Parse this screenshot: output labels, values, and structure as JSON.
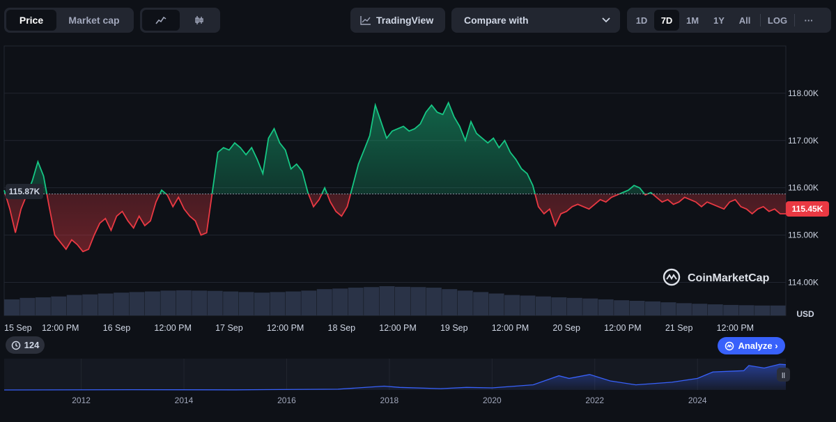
{
  "toolbar": {
    "tabs": [
      "Price",
      "Market cap"
    ],
    "chart_type_options": [
      "line-chart-icon",
      "candlestick-icon"
    ],
    "tradingview_label": "TradingView",
    "compare_label": "Compare with",
    "ranges": [
      "1D",
      "7D",
      "1M",
      "1Y",
      "All"
    ],
    "active_range": "7D",
    "log_label": "LOG",
    "more_label": "···"
  },
  "chart_data": {
    "type": "area",
    "currency_label": "USD",
    "baseline": 115.87,
    "baseline_label": "115.87K",
    "current_label": "115.45K",
    "y_ticks": [
      114,
      115,
      116,
      117,
      118
    ],
    "y_tick_labels": [
      "114.00K",
      "115.00K",
      "116.00K",
      "117.00K",
      "118.00K"
    ],
    "ylim": [
      113.3,
      119.0
    ],
    "x_tick_labels": [
      "15 Sep",
      "12:00 PM",
      "16 Sep",
      "12:00 PM",
      "17 Sep",
      "12:00 PM",
      "18 Sep",
      "12:00 PM",
      "19 Sep",
      "12:00 PM",
      "20 Sep",
      "12:00 PM",
      "21 Sep",
      "12:00 PM"
    ],
    "x_range_days": [
      0,
      6.95
    ],
    "series": [
      {
        "unit": "K USD",
        "points": [
          [
            0.0,
            115.95
          ],
          [
            0.05,
            115.55
          ],
          [
            0.1,
            115.05
          ],
          [
            0.15,
            115.55
          ],
          [
            0.2,
            115.85
          ],
          [
            0.25,
            116.15
          ],
          [
            0.3,
            116.55
          ],
          [
            0.35,
            116.25
          ],
          [
            0.4,
            115.6
          ],
          [
            0.45,
            115.0
          ],
          [
            0.5,
            114.85
          ],
          [
            0.55,
            114.7
          ],
          [
            0.6,
            114.9
          ],
          [
            0.65,
            114.8
          ],
          [
            0.7,
            114.65
          ],
          [
            0.75,
            114.7
          ],
          [
            0.8,
            115.0
          ],
          [
            0.85,
            115.25
          ],
          [
            0.9,
            115.35
          ],
          [
            0.95,
            115.1
          ],
          [
            1.0,
            115.4
          ],
          [
            1.05,
            115.5
          ],
          [
            1.1,
            115.3
          ],
          [
            1.15,
            115.15
          ],
          [
            1.2,
            115.4
          ],
          [
            1.25,
            115.2
          ],
          [
            1.3,
            115.3
          ],
          [
            1.35,
            115.7
          ],
          [
            1.4,
            115.95
          ],
          [
            1.45,
            115.85
          ],
          [
            1.5,
            115.6
          ],
          [
            1.55,
            115.8
          ],
          [
            1.6,
            115.55
          ],
          [
            1.65,
            115.4
          ],
          [
            1.7,
            115.3
          ],
          [
            1.75,
            115.0
          ],
          [
            1.8,
            115.05
          ],
          [
            1.85,
            115.9
          ],
          [
            1.9,
            116.75
          ],
          [
            1.95,
            116.85
          ],
          [
            2.0,
            116.8
          ],
          [
            2.05,
            116.95
          ],
          [
            2.1,
            116.85
          ],
          [
            2.15,
            116.7
          ],
          [
            2.2,
            116.85
          ],
          [
            2.25,
            116.6
          ],
          [
            2.3,
            116.3
          ],
          [
            2.35,
            117.05
          ],
          [
            2.4,
            117.25
          ],
          [
            2.45,
            116.95
          ],
          [
            2.5,
            116.8
          ],
          [
            2.55,
            116.4
          ],
          [
            2.6,
            116.5
          ],
          [
            2.65,
            116.35
          ],
          [
            2.7,
            115.9
          ],
          [
            2.75,
            115.6
          ],
          [
            2.8,
            115.75
          ],
          [
            2.85,
            116.0
          ],
          [
            2.9,
            115.7
          ],
          [
            2.95,
            115.5
          ],
          [
            3.0,
            115.4
          ],
          [
            3.05,
            115.6
          ],
          [
            3.1,
            116.05
          ],
          [
            3.15,
            116.5
          ],
          [
            3.2,
            116.8
          ],
          [
            3.25,
            117.1
          ],
          [
            3.3,
            117.75
          ],
          [
            3.35,
            117.4
          ],
          [
            3.4,
            117.05
          ],
          [
            3.45,
            117.2
          ],
          [
            3.5,
            117.25
          ],
          [
            3.55,
            117.3
          ],
          [
            3.6,
            117.2
          ],
          [
            3.65,
            117.25
          ],
          [
            3.7,
            117.35
          ],
          [
            3.75,
            117.6
          ],
          [
            3.8,
            117.75
          ],
          [
            3.85,
            117.6
          ],
          [
            3.9,
            117.55
          ],
          [
            3.95,
            117.8
          ],
          [
            4.0,
            117.5
          ],
          [
            4.05,
            117.3
          ],
          [
            4.1,
            117.0
          ],
          [
            4.15,
            117.4
          ],
          [
            4.2,
            117.15
          ],
          [
            4.25,
            117.05
          ],
          [
            4.3,
            116.95
          ],
          [
            4.35,
            117.05
          ],
          [
            4.4,
            116.85
          ],
          [
            4.45,
            117.0
          ],
          [
            4.5,
            116.75
          ],
          [
            4.55,
            116.6
          ],
          [
            4.6,
            116.4
          ],
          [
            4.65,
            116.3
          ],
          [
            4.7,
            116.05
          ],
          [
            4.75,
            115.6
          ],
          [
            4.8,
            115.45
          ],
          [
            4.85,
            115.55
          ],
          [
            4.9,
            115.2
          ],
          [
            4.95,
            115.45
          ],
          [
            5.0,
            115.5
          ],
          [
            5.05,
            115.6
          ],
          [
            5.1,
            115.65
          ],
          [
            5.15,
            115.6
          ],
          [
            5.2,
            115.55
          ],
          [
            5.25,
            115.65
          ],
          [
            5.3,
            115.75
          ],
          [
            5.35,
            115.7
          ],
          [
            5.4,
            115.8
          ],
          [
            5.45,
            115.85
          ],
          [
            5.5,
            115.9
          ],
          [
            5.55,
            115.95
          ],
          [
            5.6,
            116.05
          ],
          [
            5.65,
            116.0
          ],
          [
            5.7,
            115.85
          ],
          [
            5.75,
            115.9
          ],
          [
            5.8,
            115.8
          ],
          [
            5.85,
            115.7
          ],
          [
            5.9,
            115.75
          ],
          [
            5.95,
            115.65
          ],
          [
            6.0,
            115.7
          ],
          [
            6.05,
            115.8
          ],
          [
            6.1,
            115.75
          ],
          [
            6.15,
            115.7
          ],
          [
            6.2,
            115.6
          ],
          [
            6.25,
            115.7
          ],
          [
            6.3,
            115.65
          ],
          [
            6.35,
            115.6
          ],
          [
            6.4,
            115.55
          ],
          [
            6.45,
            115.7
          ],
          [
            6.5,
            115.75
          ],
          [
            6.55,
            115.6
          ],
          [
            6.6,
            115.55
          ],
          [
            6.65,
            115.45
          ],
          [
            6.7,
            115.55
          ],
          [
            6.75,
            115.6
          ],
          [
            6.8,
            115.5
          ],
          [
            6.85,
            115.55
          ],
          [
            6.9,
            115.45
          ],
          [
            6.95,
            115.45
          ]
        ]
      }
    ],
    "volume": [
      0.55,
      0.6,
      0.62,
      0.65,
      0.7,
      0.72,
      0.75,
      0.78,
      0.8,
      0.82,
      0.85,
      0.86,
      0.85,
      0.84,
      0.82,
      0.8,
      0.78,
      0.8,
      0.82,
      0.85,
      0.9,
      0.92,
      0.95,
      0.97,
      1.0,
      0.98,
      0.97,
      0.95,
      0.9,
      0.85,
      0.8,
      0.75,
      0.7,
      0.68,
      0.65,
      0.62,
      0.6,
      0.58,
      0.55,
      0.52,
      0.5,
      0.48,
      0.45,
      0.42,
      0.4,
      0.38,
      0.36,
      0.35,
      0.34,
      0.34
    ],
    "overview": {
      "type": "area",
      "x_tick_labels": [
        "2012",
        "2014",
        "2016",
        "2018",
        "2020",
        "2022",
        "2024"
      ],
      "x_ticks": [
        2012,
        2014,
        2016,
        2018,
        2020,
        2022,
        2024
      ],
      "xlim": [
        2010.5,
        2025.72
      ],
      "points": [
        [
          2010.5,
          0.0
        ],
        [
          2013.0,
          0.01
        ],
        [
          2015.0,
          0.005
        ],
        [
          2017.0,
          0.03
        ],
        [
          2017.9,
          0.15
        ],
        [
          2018.2,
          0.1
        ],
        [
          2019.0,
          0.05
        ],
        [
          2019.5,
          0.1
        ],
        [
          2020.0,
          0.08
        ],
        [
          2020.8,
          0.2
        ],
        [
          2021.3,
          0.55
        ],
        [
          2021.5,
          0.45
        ],
        [
          2021.9,
          0.6
        ],
        [
          2022.3,
          0.35
        ],
        [
          2022.8,
          0.2
        ],
        [
          2023.5,
          0.3
        ],
        [
          2024.0,
          0.45
        ],
        [
          2024.3,
          0.7
        ],
        [
          2024.9,
          0.75
        ],
        [
          2025.0,
          0.95
        ],
        [
          2025.3,
          0.85
        ],
        [
          2025.6,
          1.0
        ],
        [
          2025.72,
          0.98
        ]
      ]
    }
  },
  "badges": {
    "history_count": "124",
    "analyze_label": "Analyze ›",
    "watermark": "CoinMarketCap"
  }
}
